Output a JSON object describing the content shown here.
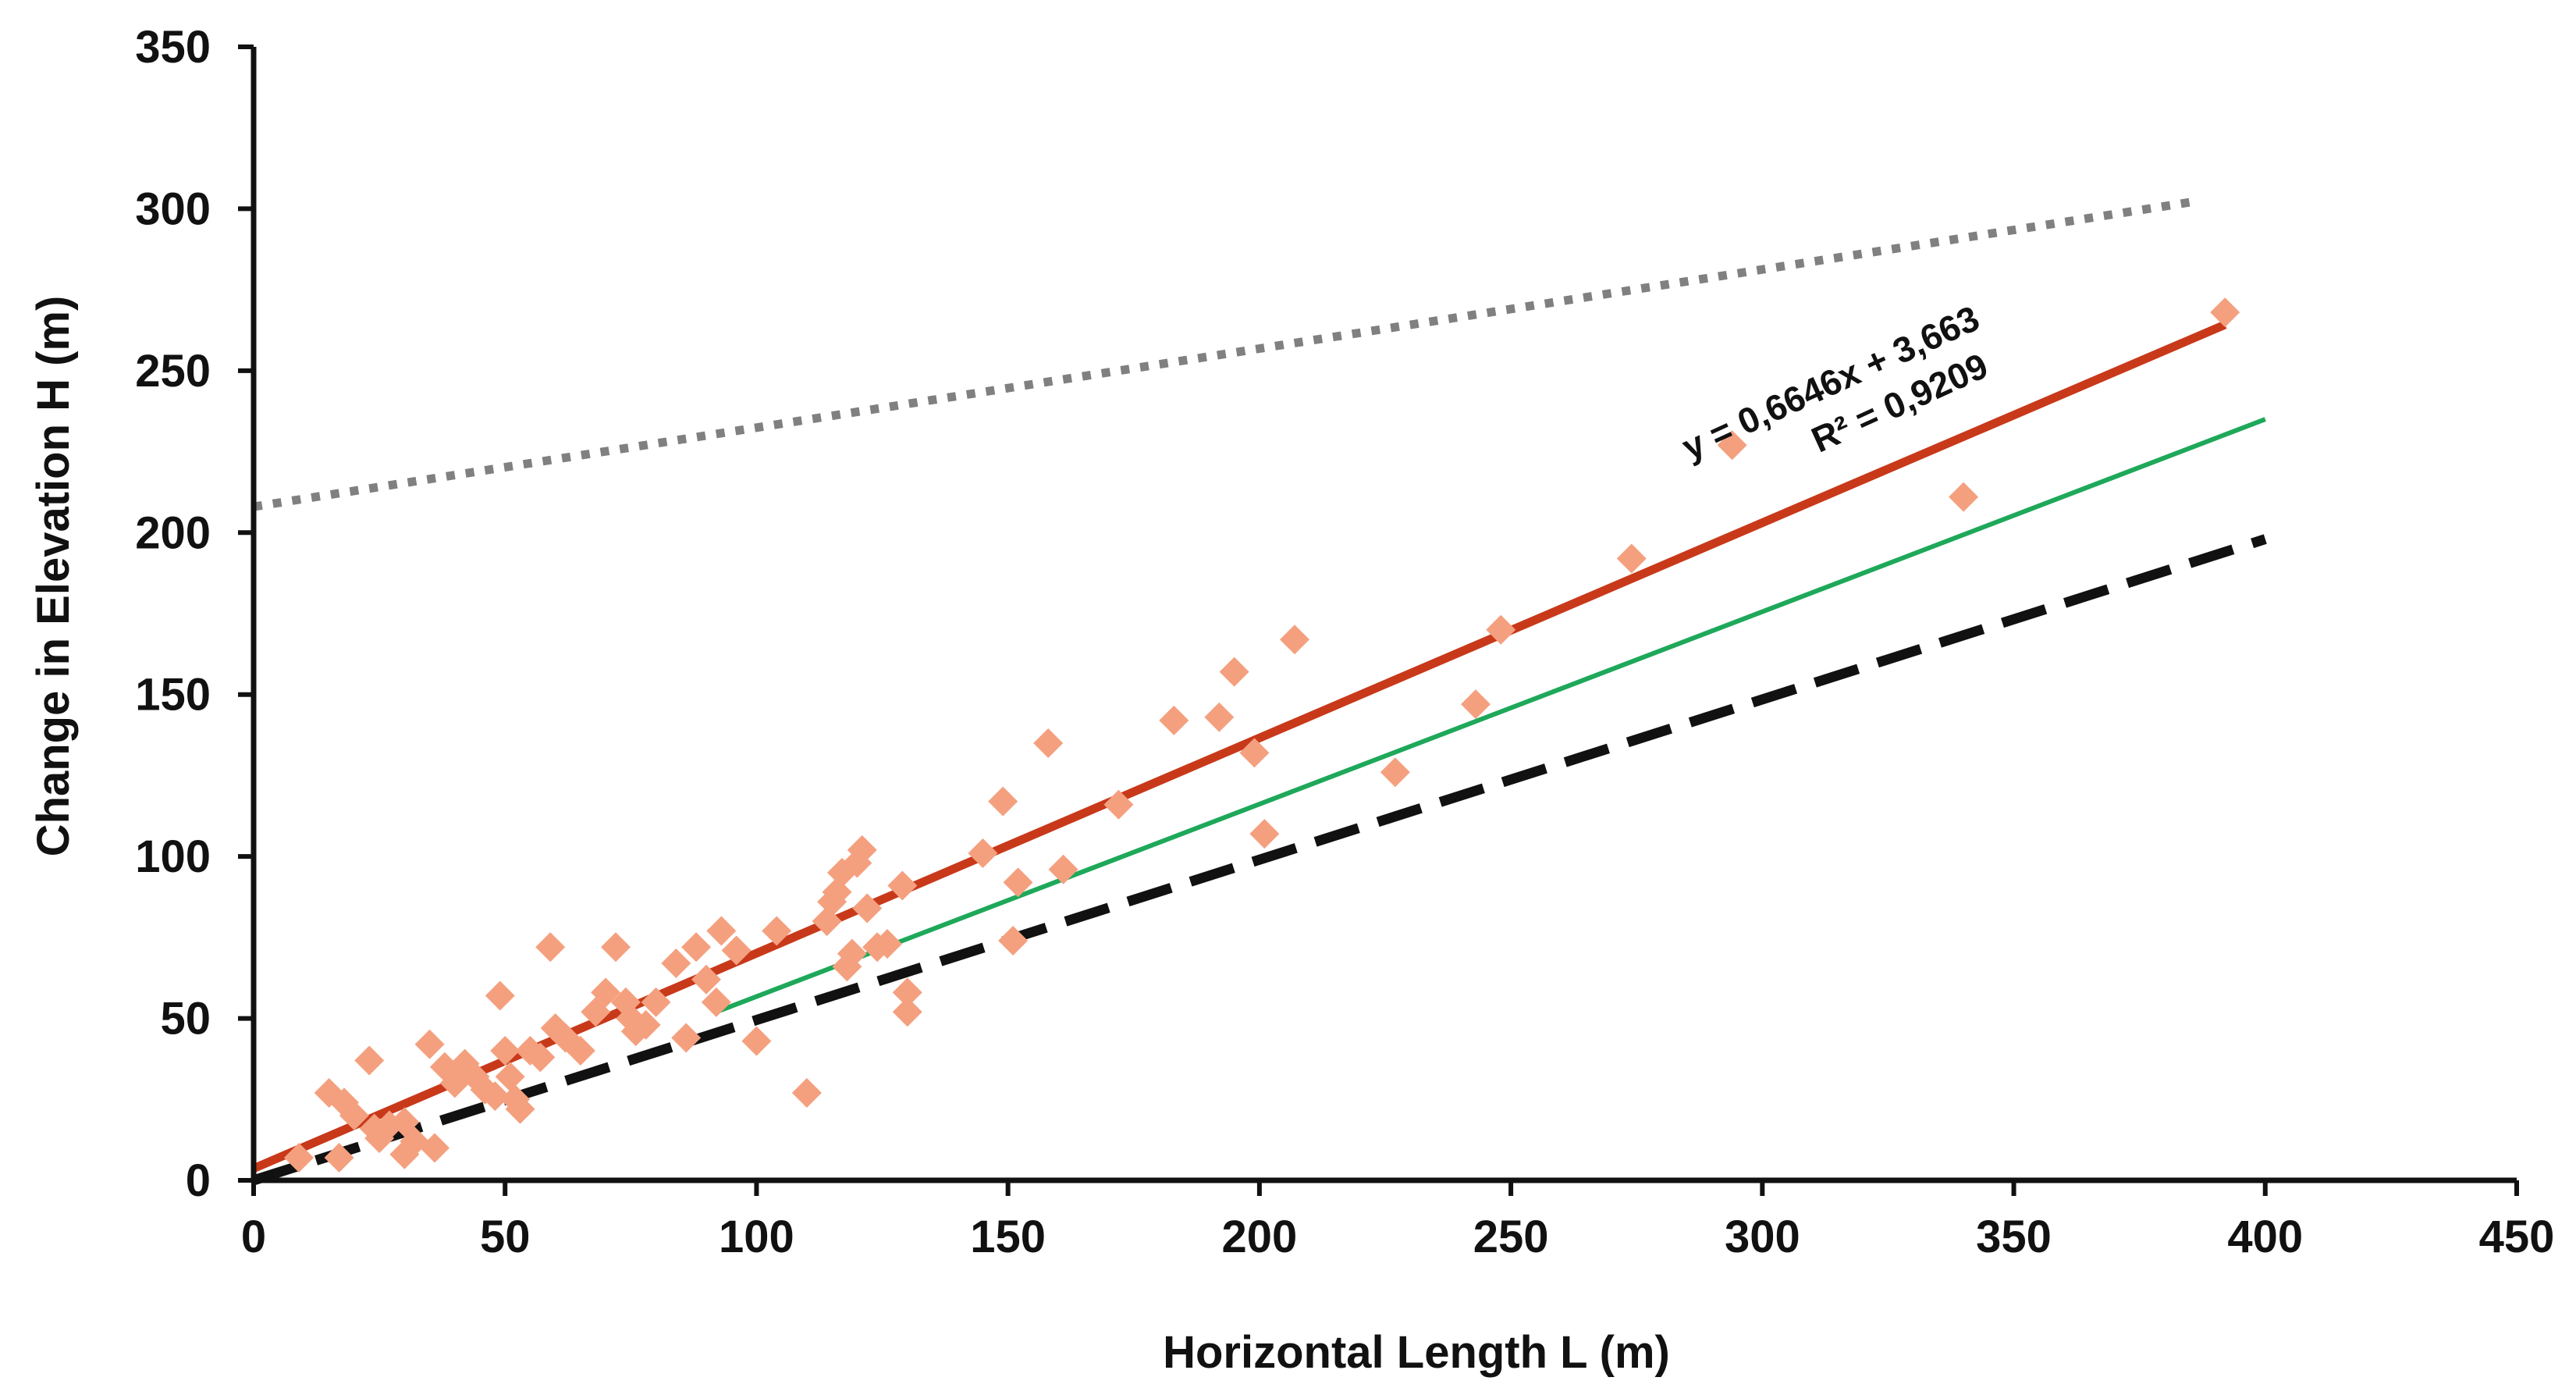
{
  "chart_data": {
    "type": "scatter",
    "xlabel": "Horizontal Length L (m)",
    "ylabel": "Change in Elevation H (m)",
    "xlim": [
      0,
      450
    ],
    "ylim": [
      0,
      350
    ],
    "xticks": [
      "0",
      "50",
      "100",
      "150",
      "200",
      "250",
      "300",
      "350",
      "400",
      "450"
    ],
    "yticks": [
      "0",
      "50",
      "100",
      "150",
      "200",
      "250",
      "300",
      "350"
    ],
    "grid": false,
    "colors": {
      "points": "#f4a07f",
      "fit": "#c8391a",
      "green": "#1ea85a",
      "dashed": "#111111",
      "dotted": "#808080",
      "axis": "#111111"
    },
    "annotations": {
      "equation": "y = 0,6646x + 3,663",
      "r_squared": "R² = 0,9209"
    },
    "lines": [
      {
        "name": "linear-fit",
        "style": "solid",
        "x": [
          0,
          392
        ],
        "y": [
          3.663,
          264.2
        ]
      },
      {
        "name": "green-line",
        "style": "solid",
        "x": [
          92,
          400
        ],
        "y": [
          52,
          235
        ]
      },
      {
        "name": "dashed-line",
        "style": "dashed",
        "x": [
          0,
          400
        ],
        "y": [
          0,
          198
        ]
      },
      {
        "name": "dotted-line",
        "style": "dotted",
        "x": [
          0,
          385
        ],
        "y": [
          208,
          302
        ]
      }
    ],
    "points": [
      [
        9,
        7
      ],
      [
        15,
        27
      ],
      [
        17,
        7
      ],
      [
        18,
        24
      ],
      [
        20,
        20
      ],
      [
        23,
        37
      ],
      [
        24,
        16
      ],
      [
        25,
        13
      ],
      [
        27,
        17
      ],
      [
        30,
        18
      ],
      [
        30,
        8
      ],
      [
        32,
        12
      ],
      [
        35,
        42
      ],
      [
        36,
        10
      ],
      [
        38,
        35
      ],
      [
        40,
        30
      ],
      [
        42,
        36
      ],
      [
        44,
        32
      ],
      [
        46,
        28
      ],
      [
        48,
        26
      ],
      [
        49,
        57
      ],
      [
        50,
        40
      ],
      [
        51,
        32
      ],
      [
        52,
        25
      ],
      [
        53,
        22
      ],
      [
        55,
        40
      ],
      [
        57,
        38
      ],
      [
        59,
        72
      ],
      [
        60,
        47
      ],
      [
        62,
        44
      ],
      [
        65,
        40
      ],
      [
        68,
        52
      ],
      [
        70,
        58
      ],
      [
        72,
        72
      ],
      [
        74,
        55
      ],
      [
        75,
        50
      ],
      [
        76,
        46
      ],
      [
        78,
        48
      ],
      [
        80,
        55
      ],
      [
        84,
        67
      ],
      [
        86,
        44
      ],
      [
        88,
        72
      ],
      [
        90,
        62
      ],
      [
        92,
        55
      ],
      [
        93,
        77
      ],
      [
        96,
        71
      ],
      [
        100,
        43
      ],
      [
        104,
        77
      ],
      [
        110,
        27
      ],
      [
        114,
        80
      ],
      [
        115,
        86
      ],
      [
        116,
        89
      ],
      [
        117,
        95
      ],
      [
        118,
        66
      ],
      [
        119,
        70
      ],
      [
        120,
        98
      ],
      [
        121,
        102
      ],
      [
        122,
        84
      ],
      [
        124,
        72
      ],
      [
        126,
        73
      ],
      [
        129,
        91
      ],
      [
        130,
        58
      ],
      [
        130,
        52
      ],
      [
        145,
        101
      ],
      [
        149,
        117
      ],
      [
        151,
        74
      ],
      [
        152,
        92
      ],
      [
        158,
        135
      ],
      [
        161,
        96
      ],
      [
        172,
        116
      ],
      [
        183,
        142
      ],
      [
        192,
        143
      ],
      [
        195,
        157
      ],
      [
        199,
        132
      ],
      [
        201,
        107
      ],
      [
        207,
        167
      ],
      [
        227,
        126
      ],
      [
        243,
        147
      ],
      [
        248,
        170
      ],
      [
        274,
        192
      ],
      [
        294,
        227
      ],
      [
        340,
        211
      ],
      [
        392,
        268
      ]
    ]
  }
}
